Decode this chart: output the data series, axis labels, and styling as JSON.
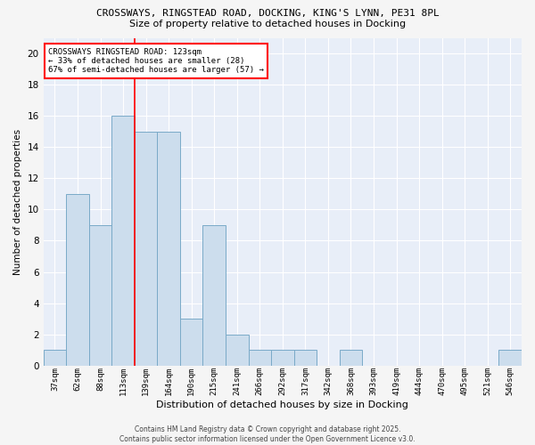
{
  "title1": "CROSSWAYS, RINGSTEAD ROAD, DOCKING, KING'S LYNN, PE31 8PL",
  "title2": "Size of property relative to detached houses in Docking",
  "xlabel": "Distribution of detached houses by size in Docking",
  "ylabel": "Number of detached properties",
  "bar_color": "#ccdded",
  "bar_edge_color": "#7aaac8",
  "bg_color": "#e8eef8",
  "grid_color": "#ffffff",
  "categories": [
    "37sqm",
    "62sqm",
    "88sqm",
    "113sqm",
    "139sqm",
    "164sqm",
    "190sqm",
    "215sqm",
    "241sqm",
    "266sqm",
    "292sqm",
    "317sqm",
    "342sqm",
    "368sqm",
    "393sqm",
    "419sqm",
    "444sqm",
    "470sqm",
    "495sqm",
    "521sqm",
    "546sqm"
  ],
  "values": [
    1,
    11,
    9,
    16,
    15,
    15,
    3,
    9,
    2,
    1,
    1,
    1,
    0,
    1,
    0,
    0,
    0,
    0,
    0,
    0,
    1
  ],
  "ylim": [
    0,
    21
  ],
  "yticks": [
    0,
    2,
    4,
    6,
    8,
    10,
    12,
    14,
    16,
    18,
    20
  ],
  "annotation_text": "CROSSWAYS RINGSTEAD ROAD: 123sqm\n← 33% of detached houses are smaller (28)\n67% of semi-detached houses are larger (57) →",
  "footer": "Contains HM Land Registry data © Crown copyright and database right 2025.\nContains public sector information licensed under the Open Government Licence v3.0.",
  "red_line_x": 3.5
}
